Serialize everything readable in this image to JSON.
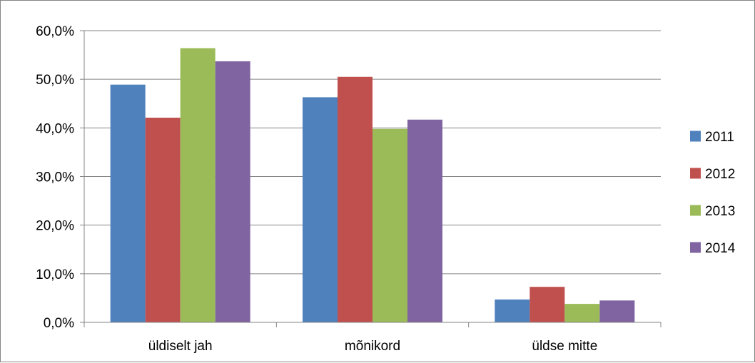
{
  "chart_data": {
    "type": "bar",
    "categories": [
      "üldiselt jah",
      "mõnikord",
      "üldse mitte"
    ],
    "series": [
      {
        "name": "2011",
        "color": "#4F81BD",
        "values": [
          48.9,
          46.3,
          4.7
        ]
      },
      {
        "name": "2012",
        "color": "#C0504D",
        "values": [
          42.1,
          50.5,
          7.3
        ]
      },
      {
        "name": "2013",
        "color": "#9BBB59",
        "values": [
          56.4,
          39.8,
          3.8
        ]
      },
      {
        "name": "2014",
        "color": "#8064A2",
        "values": [
          53.7,
          41.7,
          4.5
        ]
      }
    ],
    "yticks": [
      "0,0%",
      "10,0%",
      "20,0%",
      "30,0%",
      "40,0%",
      "50,0%",
      "60,0%"
    ],
    "ylim": [
      0,
      60
    ],
    "ytick_step": 10,
    "grid": true,
    "legend": "right",
    "title": "",
    "xlabel": "",
    "ylabel": ""
  }
}
